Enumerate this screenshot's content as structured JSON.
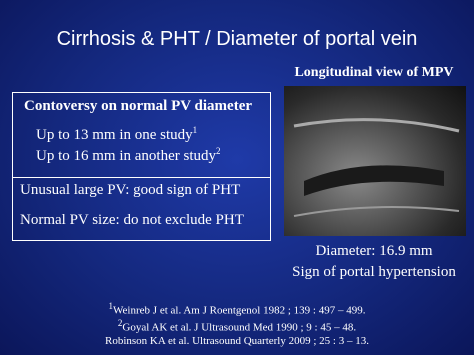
{
  "title": "Cirrhosis & PHT / Diameter of portal vein",
  "image": {
    "caption": "Longitudinal view of MPV",
    "measurements": [
      "Diameter: 16.9 mm",
      "Sign of portal hypertension"
    ]
  },
  "box": {
    "heading": "Contoversy on normal PV diameter",
    "items": [
      {
        "text": "Up to 13 mm in one study",
        "ref": "1"
      },
      {
        "text": "Up to 16 mm in another study",
        "ref": "2"
      }
    ],
    "notes": [
      "Unusual large PV: good sign of PHT",
      "Normal PV size: do not exclude PHT"
    ]
  },
  "references": [
    {
      "marker": "1",
      "text": "Weinreb J et al. Am J Roentgenol 1982 ; 139 : 497 – 499."
    },
    {
      "marker": "2",
      "text": "Goyal AK et al.  J Ultrasound Med 1990 ;  9 : 45 – 48."
    },
    {
      "text": "Robinson KA et al. Ultrasound Quarterly 2009 ; 25 : 3 – 13."
    }
  ]
}
